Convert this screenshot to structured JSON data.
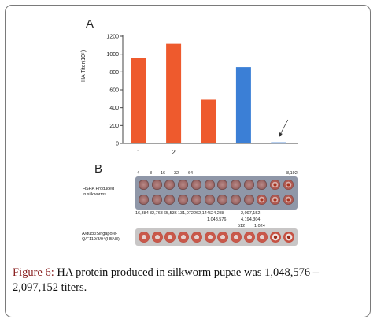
{
  "panel_a": "A",
  "panel_b": "B",
  "chart_data": {
    "type": "bar",
    "categories": [
      "1",
      "2",
      "",
      "",
      ""
    ],
    "values": [
      955,
      1115,
      490,
      855,
      12
    ],
    "colors": [
      "#ee5a2d",
      "#ee5a2d",
      "#ee5a2d",
      "#3b7fd6",
      "#3b7fd6"
    ],
    "ylabel": "HA Titer(10⁵)",
    "yticks": [
      "0",
      "200",
      "400",
      "600",
      "800",
      "1000",
      "1200"
    ],
    "ylim": [
      0,
      1200
    ],
    "grid": false
  },
  "plate": {
    "top_labels": [
      "4",
      "8",
      "16",
      "32",
      "64",
      "8,192"
    ],
    "row_label": [
      "HSHA Produced",
      "in silkworms"
    ],
    "bottom_labels": [
      "16,384",
      "32,768",
      "65,536",
      "131,072",
      "262,144",
      "524,288"
    ],
    "labels_mid": [
      "1,048,576",
      "2,097,152",
      "4,194,304"
    ],
    "labels_b": [
      "512",
      "1,024"
    ],
    "row2_label": [
      "A/duck/Singapore-",
      "Q/F119/3/94(H5N3)"
    ]
  },
  "caption": {
    "fig": "Figure 6:",
    "text": " HA protein produced in silkworm pupae was 1,048,576 – 2,097,152 titers."
  }
}
